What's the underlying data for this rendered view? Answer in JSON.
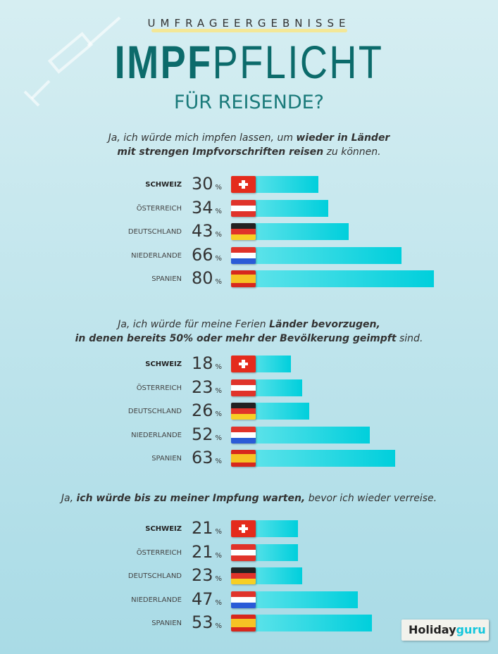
{
  "header": {
    "kicker": "UMFRAGEERGEBNISSE",
    "title_bold": "IMPF",
    "title_light": "PFLICHT",
    "subtitle": "FÜR REISENDE?"
  },
  "logo": {
    "part1": "Holiday",
    "part2": "guru"
  },
  "colors": {
    "bar": "#00cfdc",
    "title": "#0c6b6b"
  },
  "chart_data": [
    {
      "type": "bar",
      "orientation": "horizontal",
      "question": {
        "l1a": "Ja, ich würde mich impfen lassen, um ",
        "l1b": "wieder in Länder",
        "l2a": "mit strengen Impfvorschriften reisen",
        "l2b": " zu können."
      },
      "categories": [
        "SCHWEIZ",
        "ÖSTERREICH",
        "DEUTSCHLAND",
        "NIEDERLANDE",
        "SPANIEN"
      ],
      "values": [
        30,
        34,
        43,
        66,
        80
      ],
      "unit": "%"
    },
    {
      "type": "bar",
      "orientation": "horizontal",
      "question": {
        "l1a": "Ja, ich würde für meine Ferien ",
        "l1b": "Länder bevorzugen,",
        "l2a": "in denen bereits 50% oder mehr der Bevölkerung geimpft",
        "l2b": " sind."
      },
      "categories": [
        "SCHWEIZ",
        "ÖSTERREICH",
        "DEUTSCHLAND",
        "NIEDERLANDE",
        "SPANIEN"
      ],
      "values": [
        18,
        23,
        26,
        52,
        63
      ],
      "unit": "%"
    },
    {
      "type": "bar",
      "orientation": "horizontal",
      "question": {
        "l1a": "Ja, ",
        "l1b": "ich würde bis zu meiner Impfung warten,",
        "l2a": "",
        "l2b": " bevor ich wieder verreise."
      },
      "categories": [
        "SCHWEIZ",
        "ÖSTERREICH",
        "DEUTSCHLAND",
        "NIEDERLANDE",
        "SPANIEN"
      ],
      "values": [
        21,
        21,
        23,
        47,
        53
      ],
      "unit": "%"
    }
  ]
}
